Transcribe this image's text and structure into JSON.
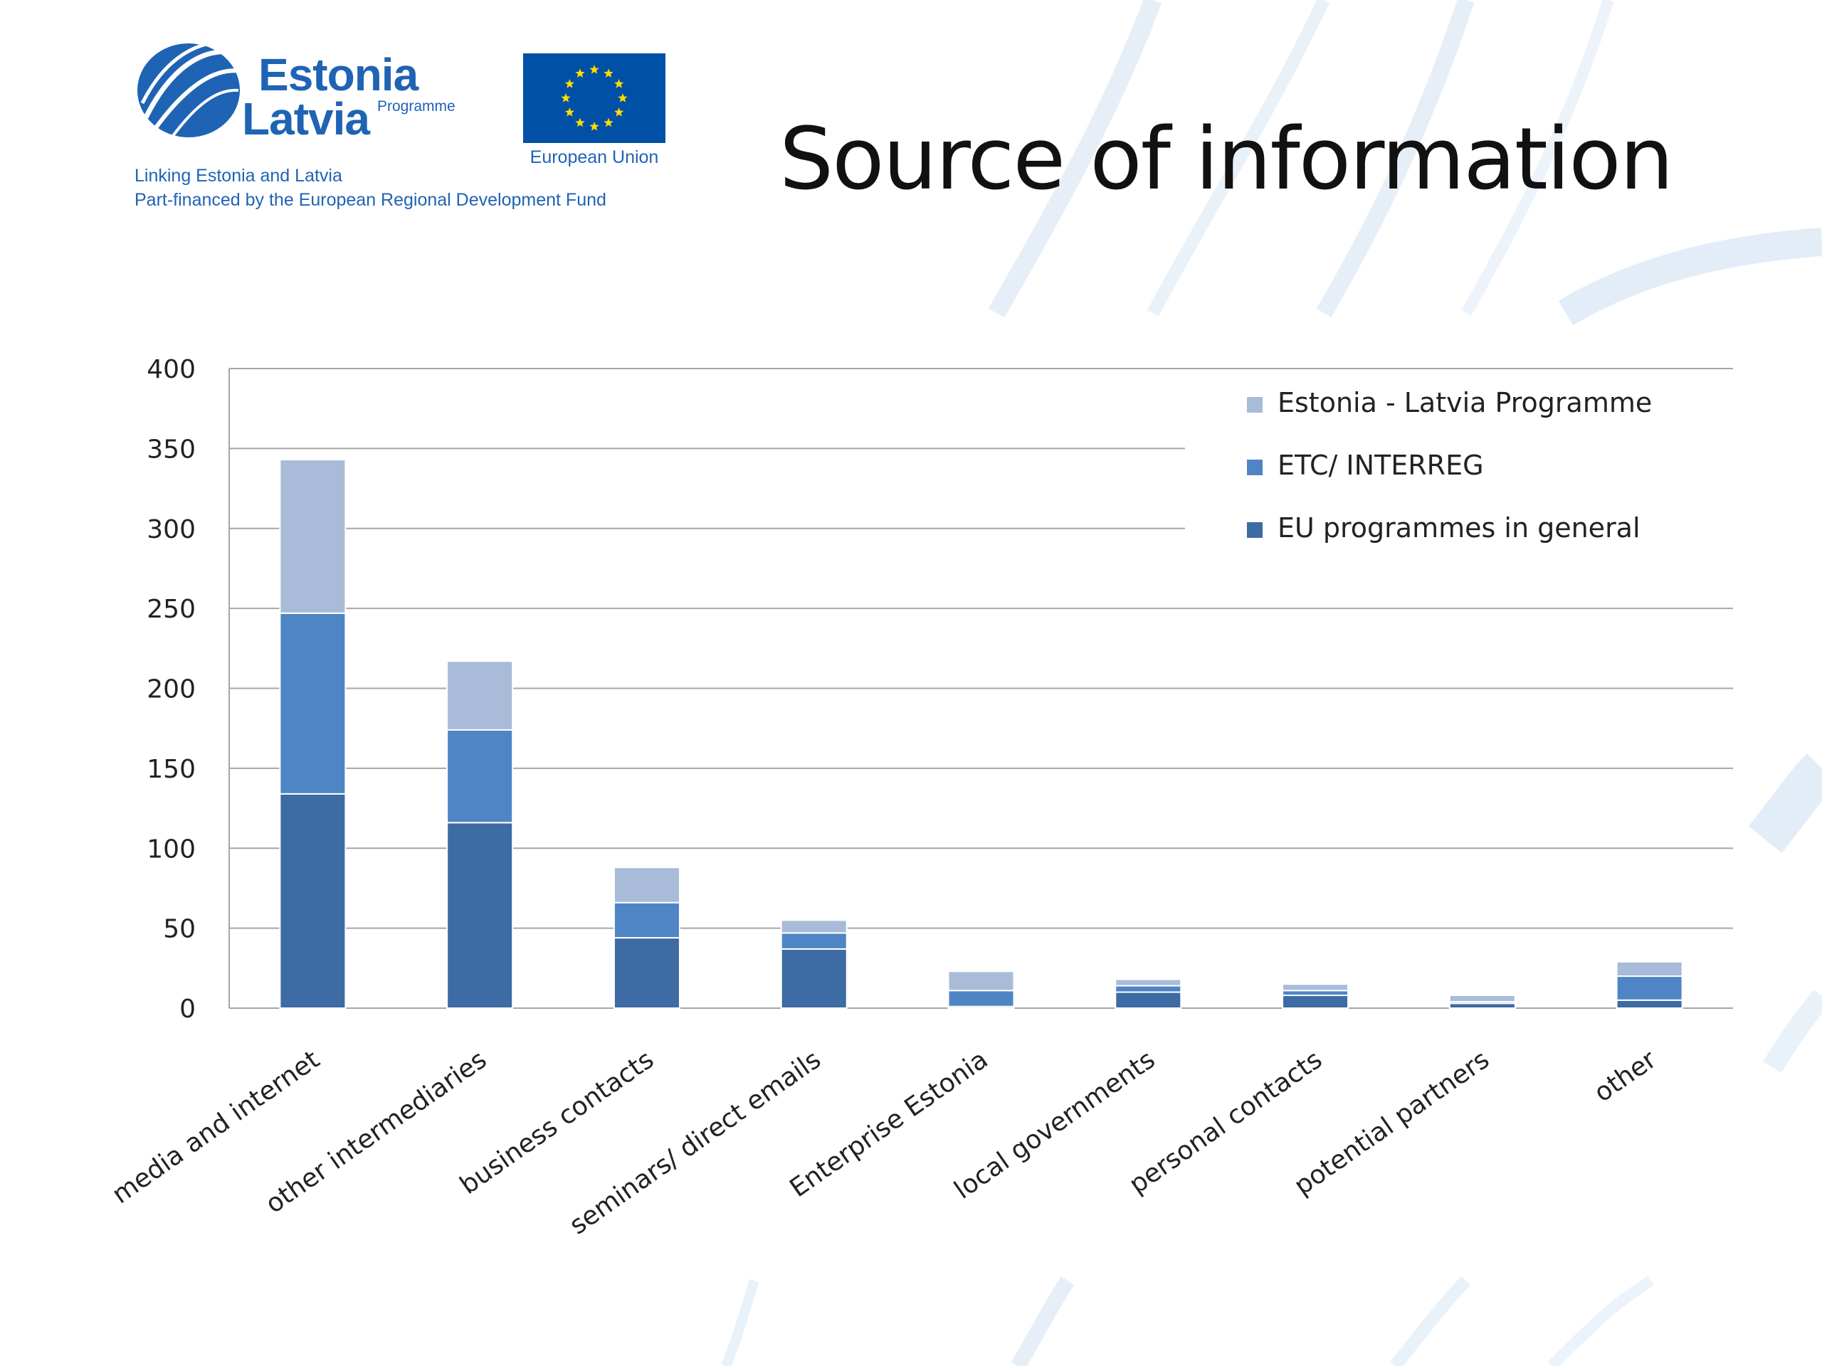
{
  "header": {
    "logo": {
      "name_line1": "Estonia",
      "name_line2": "Latvia",
      "name_sub": "Programme",
      "tagline_line1": "Linking Estonia and Latvia",
      "tagline_line2": "Part-financed by the European Regional Development Fund",
      "eu_label": "European Union",
      "brand_color": "#1f63b5",
      "eu_flag_color": "#0050a5",
      "eu_star_color": "#ffdd00"
    },
    "title": "Source of information"
  },
  "chart_data": {
    "type": "bar",
    "stacked": true,
    "categories": [
      "media and internet",
      "other intermediaries",
      "business contacts",
      "seminars/ direct emails",
      "Enterprise Estonia",
      "local governments",
      "personal contacts",
      "potential partners",
      "other"
    ],
    "series": [
      {
        "name": "EU programmes in general",
        "color": "#3d6ba3",
        "values": [
          134,
          116,
          44,
          37,
          1,
          10,
          8,
          3,
          5
        ]
      },
      {
        "name": "ETC/ INTERREG",
        "color": "#4f85c4",
        "values": [
          113,
          58,
          22,
          10,
          10,
          4,
          3,
          1,
          15
        ]
      },
      {
        "name": "Estonia - Latvia Programme",
        "color": "#a8bbd8",
        "values": [
          96,
          43,
          22,
          8,
          12,
          4,
          4,
          4,
          9
        ]
      }
    ],
    "legend_order": [
      "Estonia - Latvia Programme",
      "ETC/ INTERREG",
      "EU programmes in general"
    ],
    "ylim": [
      0,
      400
    ],
    "yticks": [
      0,
      50,
      100,
      150,
      200,
      250,
      300,
      350,
      400
    ],
    "grid": true,
    "legend": "top-right"
  }
}
